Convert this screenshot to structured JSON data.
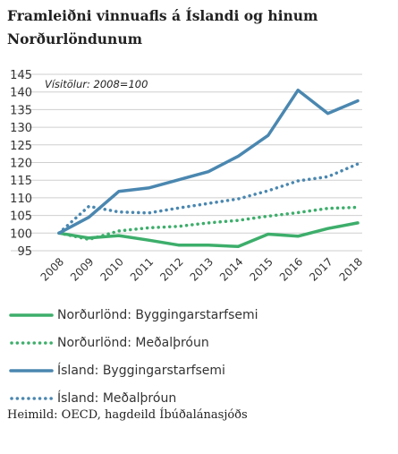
{
  "title": "Framleiðni vinnuafls á Íslandi og hinum Norðurlöndunum",
  "source": "Heimild: OECD, hagdeild Íbúðalánasjóðs",
  "chart_data": {
    "type": "line",
    "annotation": "Vísitölur: 2008=100",
    "x": [
      "2008",
      "2009",
      "2010",
      "2011",
      "2012",
      "2013",
      "2014",
      "2015",
      "2016",
      "2017",
      "2018"
    ],
    "ylim": [
      95,
      145
    ],
    "yticks": [
      95,
      100,
      105,
      110,
      115,
      120,
      125,
      130,
      135,
      140,
      145
    ],
    "grid": true,
    "legend_position": "bottom",
    "series": [
      {
        "name": "Norðurlönd: Byggingarstarfsemi",
        "color": "#3dae6b",
        "style": "solid",
        "values": [
          100,
          98.6,
          99.3,
          98.0,
          96.6,
          96.6,
          96.2,
          99.7,
          99.1,
          101.3,
          102.9
        ]
      },
      {
        "name": "Norðurlönd: Meðalþróun",
        "color": "#3dae6b",
        "style": "dotted",
        "values": [
          100,
          98.2,
          100.6,
          101.5,
          101.9,
          102.9,
          103.6,
          104.8,
          105.8,
          107.0,
          107.3
        ]
      },
      {
        "name": "Ísland: Byggingarstarfsemi",
        "color": "#4a87b0",
        "style": "solid",
        "values": [
          100,
          104.5,
          111.8,
          112.8,
          115.1,
          117.4,
          121.8,
          127.7,
          140.5,
          133.9,
          137.5
        ]
      },
      {
        "name": "Ísland: Meðalþróun",
        "color": "#4a87b0",
        "style": "dotted",
        "values": [
          100,
          107.6,
          106.0,
          105.7,
          107.1,
          108.4,
          109.7,
          112.0,
          114.8,
          116.0,
          119.6
        ]
      }
    ]
  }
}
